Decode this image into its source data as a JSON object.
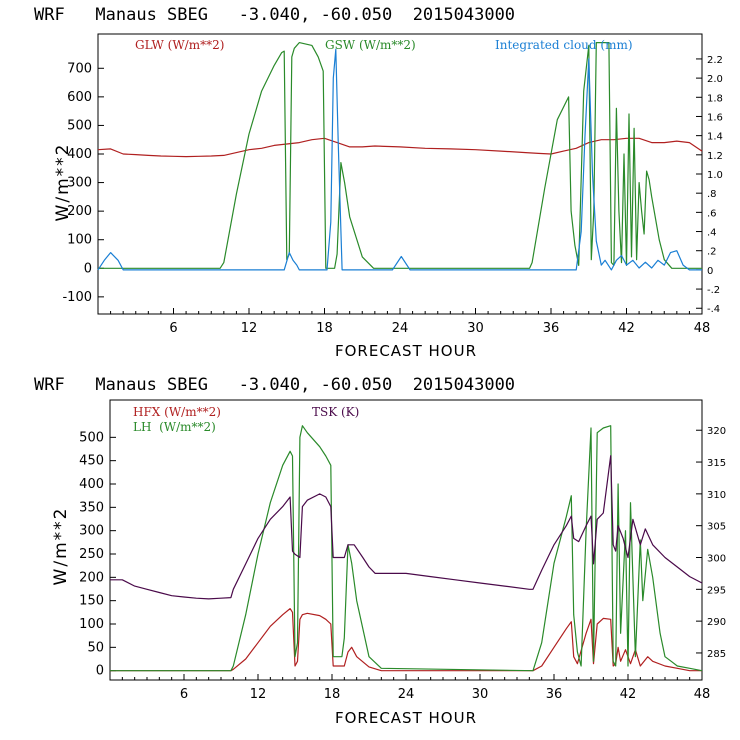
{
  "chart_data": [
    {
      "type": "line",
      "title": "WRF   Manaus SBEG   -3.040, -60.050  2015043000",
      "xlabel": "FORECAST HOUR",
      "ylabel": "W/m**2",
      "xlim": [
        0,
        48
      ],
      "ylim": [
        -160,
        820
      ],
      "y2lim": [
        -0.46,
        2.46
      ],
      "x_ticks": [
        "6",
        "12",
        "18",
        "24",
        "30",
        "36",
        "42",
        "48"
      ],
      "y_ticks": [
        "-100",
        "0",
        "100",
        "200",
        "300",
        "400",
        "500",
        "600",
        "700"
      ],
      "y2_ticks": [
        "-.4",
        "-.2",
        "0",
        ".2",
        ".4",
        ".6",
        ".8",
        "1.0",
        "1.2",
        "1.4",
        "1.6",
        "1.8",
        "2.0",
        "2.2"
      ],
      "legend": [
        "GLW (W/m**2)",
        "GSW (W/m**2)",
        "Integrated cloud (mm)"
      ],
      "series": [
        {
          "name": "GLW (W/m**2)",
          "color": "#b02020",
          "axis": "left",
          "x": [
            0,
            1,
            2,
            3,
            4,
            5,
            6,
            7,
            8,
            9,
            10,
            11,
            12,
            13,
            14,
            15,
            16,
            17,
            18,
            19,
            20,
            21,
            22,
            24,
            26,
            28,
            30,
            32,
            34,
            35,
            36,
            37,
            38,
            39,
            40,
            41,
            42,
            43,
            44,
            45,
            46,
            47,
            48
          ],
          "values": [
            415,
            418,
            400,
            398,
            395,
            393,
            392,
            391,
            392,
            393,
            395,
            405,
            415,
            420,
            430,
            435,
            440,
            450,
            455,
            440,
            425,
            425,
            428,
            425,
            420,
            418,
            415,
            410,
            405,
            402,
            400,
            410,
            420,
            440,
            450,
            450,
            455,
            455,
            440,
            440,
            445,
            440,
            410
          ]
        },
        {
          "name": "GSW (W/m**2)",
          "color": "#2a8a2a",
          "axis": "left",
          "x": [
            0,
            9.7,
            10,
            11,
            12,
            13,
            14,
            14.6,
            14.8,
            15.0,
            15.2,
            15.4,
            15.6,
            16.0,
            17.0,
            17.5,
            17.9,
            18.1,
            18.8,
            19.0,
            19.3,
            19.6,
            20.0,
            21.0,
            21.9,
            22.0,
            34.3,
            34.5,
            35.5,
            36.5,
            37.4,
            37.6,
            37.9,
            38.2,
            38.6,
            39.0,
            39.2,
            39.4,
            39.6,
            40.0,
            40.6,
            40.8,
            41.0,
            41.2,
            41.4,
            41.6,
            41.8,
            42.0,
            42.2,
            42.4,
            42.6,
            42.8,
            43.0,
            43.2,
            43.4,
            43.6,
            43.8,
            44.0,
            44.2,
            44.6,
            45.0,
            45.6,
            46.0,
            48
          ],
          "values": [
            0,
            0,
            20,
            260,
            470,
            620,
            710,
            755,
            760,
            30,
            50,
            740,
            770,
            790,
            780,
            740,
            690,
            0,
            0,
            50,
            370,
            300,
            180,
            40,
            0,
            0,
            0,
            20,
            280,
            520,
            600,
            200,
            80,
            10,
            620,
            780,
            30,
            200,
            790,
            790,
            790,
            20,
            10,
            560,
            200,
            20,
            400,
            10,
            540,
            40,
            490,
            30,
            300,
            200,
            120,
            340,
            310,
            250,
            200,
            100,
            30,
            0,
            0,
            0
          ]
        },
        {
          "name": "Integrated cloud (mm)",
          "color": "#1a7fd4",
          "axis": "right",
          "x": [
            0,
            0.5,
            1.0,
            1.6,
            2.0,
            2.8,
            14.8,
            15.2,
            15.5,
            15.8,
            16.0,
            18.2,
            18.5,
            18.7,
            18.9,
            19.1,
            19.4,
            23.4,
            24.1,
            24.8,
            38.0,
            38.4,
            38.7,
            39.0,
            39.3,
            39.6,
            40.0,
            40.3,
            40.8,
            41.2,
            41.6,
            42.0,
            42.5,
            43.0,
            43.5,
            44.0,
            44.5,
            45.0,
            45.5,
            46.0,
            46.5,
            47.0,
            48
          ],
          "values": [
            0,
            0.1,
            0.18,
            0.1,
            0,
            0,
            0,
            0.18,
            0.1,
            0.05,
            0,
            0,
            0.5,
            2.0,
            2.3,
            1.3,
            0,
            0,
            0.14,
            0,
            0,
            0.4,
            1.4,
            2.2,
            1.0,
            0.3,
            0.05,
            0.1,
            0,
            0.1,
            0.15,
            0.05,
            0.1,
            0.02,
            0.08,
            0.02,
            0.1,
            0.05,
            0.18,
            0.2,
            0.05,
            0,
            0
          ]
        }
      ]
    },
    {
      "type": "line",
      "title": "WRF   Manaus SBEG   -3.040, -60.050  2015043000",
      "xlabel": "FORECAST HOUR",
      "ylabel": "W/m**2",
      "xlim": [
        0,
        48
      ],
      "ylim": [
        -20,
        580
      ],
      "y2lim": [
        280.75,
        324.75
      ],
      "x_ticks": [
        "6",
        "12",
        "18",
        "24",
        "30",
        "36",
        "42",
        "48"
      ],
      "y_ticks": [
        "0",
        "50",
        "100",
        "150",
        "200",
        "250",
        "300",
        "350",
        "400",
        "450",
        "500"
      ],
      "y2_ticks": [
        "285",
        "290",
        "295",
        "300",
        "305",
        "310",
        "315",
        "320"
      ],
      "legend": [
        "HFX (W/m**2)",
        "LH  (W/m**2)",
        "TSK (K)"
      ],
      "series": [
        {
          "name": "HFX (W/m**2)",
          "color": "#b02020",
          "axis": "left",
          "x": [
            0,
            9.8,
            10,
            11,
            12,
            13,
            14,
            14.6,
            14.8,
            15.0,
            15.2,
            15.4,
            15.6,
            16.0,
            17.0,
            17.5,
            17.9,
            18.1,
            19.0,
            19.3,
            19.6,
            20.0,
            21.0,
            22.0,
            34.3,
            35.0,
            36.0,
            37.0,
            37.4,
            37.6,
            37.9,
            38.6,
            39.0,
            39.2,
            39.5,
            40.0,
            40.6,
            40.8,
            41.0,
            41.2,
            41.4,
            41.8,
            42.2,
            42.6,
            43.0,
            43.6,
            44.0,
            45.0,
            46.0,
            47.0,
            48
          ],
          "values": [
            0,
            0,
            3,
            25,
            60,
            95,
            120,
            133,
            125,
            10,
            20,
            110,
            120,
            123,
            118,
            110,
            100,
            10,
            10,
            40,
            50,
            30,
            8,
            0,
            0,
            10,
            50,
            90,
            105,
            30,
            15,
            80,
            110,
            15,
            100,
            112,
            110,
            10,
            15,
            50,
            20,
            45,
            15,
            45,
            10,
            30,
            20,
            10,
            5,
            0,
            0
          ]
        },
        {
          "name": "LH  (W/m**2)",
          "color": "#2a8a2a",
          "axis": "left",
          "x": [
            0,
            9.8,
            10,
            11,
            12,
            13,
            14,
            14.6,
            14.8,
            15.0,
            15.2,
            15.4,
            15.6,
            16.0,
            17.0,
            17.5,
            17.9,
            18.1,
            18.8,
            19.0,
            19.3,
            19.6,
            20.0,
            21.0,
            22.0,
            34.3,
            35.0,
            36.0,
            37.0,
            37.4,
            37.6,
            37.9,
            38.2,
            38.6,
            39.0,
            39.2,
            39.5,
            40.0,
            40.6,
            40.8,
            41.0,
            41.2,
            41.4,
            41.8,
            42.0,
            42.2,
            42.6,
            43.0,
            43.2,
            43.6,
            44.0,
            44.6,
            45.0,
            45.5,
            46.0,
            47.0,
            48
          ],
          "values": [
            0,
            0,
            10,
            120,
            250,
            360,
            440,
            470,
            460,
            30,
            60,
            500,
            525,
            510,
            480,
            460,
            440,
            30,
            30,
            70,
            270,
            230,
            150,
            30,
            5,
            0,
            60,
            230,
            330,
            375,
            120,
            40,
            10,
            300,
            520,
            20,
            510,
            520,
            525,
            20,
            10,
            400,
            80,
            300,
            10,
            360,
            30,
            280,
            150,
            260,
            200,
            80,
            30,
            20,
            10,
            5,
            0
          ]
        },
        {
          "name": "TSK (K)",
          "color": "#4a0a4a",
          "axis": "right",
          "x": [
            0,
            1,
            2,
            3,
            4,
            5,
            6,
            7,
            8,
            9,
            9.8,
            10,
            11,
            12,
            13,
            14,
            14.6,
            14.8,
            15.0,
            15.4,
            15.6,
            16.0,
            17.0,
            17.5,
            17.9,
            18.1,
            19.0,
            19.3,
            19.8,
            20.5,
            21.0,
            21.5,
            22.0,
            24,
            26,
            28,
            30,
            32,
            34,
            34.3,
            35,
            36,
            37,
            37.4,
            37.6,
            38.0,
            38.6,
            39.0,
            39.2,
            39.5,
            40.0,
            40.6,
            40.8,
            41.0,
            41.2,
            41.6,
            42.0,
            42.4,
            43.0,
            43.4,
            44.0,
            45.0,
            46.0,
            47.0,
            48
          ],
          "values": [
            296.5,
            296.5,
            295.5,
            295.0,
            294.5,
            294.0,
            293.8,
            293.6,
            293.5,
            293.6,
            293.7,
            295.0,
            299.0,
            303.0,
            306.0,
            308.0,
            309.5,
            301.0,
            300.5,
            300.0,
            308.0,
            309.0,
            310.0,
            309.5,
            308.0,
            300.0,
            300.0,
            302.0,
            302.0,
            300.0,
            298.5,
            297.5,
            297.5,
            297.5,
            297.0,
            296.5,
            296.0,
            295.5,
            295.0,
            295.0,
            298.0,
            302.0,
            305.0,
            306.5,
            303.0,
            302.5,
            305.0,
            306.5,
            299.0,
            306.0,
            307.0,
            316.0,
            302.0,
            301.0,
            305.0,
            303.0,
            300.0,
            306.0,
            302.0,
            304.5,
            302.0,
            300.0,
            298.5,
            297.0,
            296.0
          ]
        }
      ]
    }
  ]
}
